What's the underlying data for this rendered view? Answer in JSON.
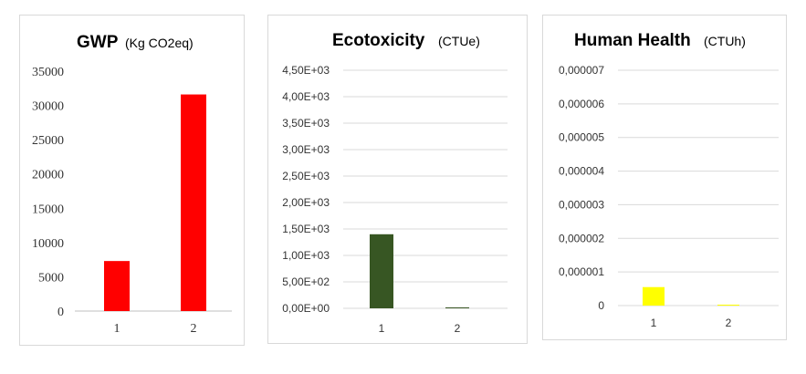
{
  "chart_data": [
    {
      "type": "bar",
      "title": "GWP",
      "unit": "(Kg CO2eq)",
      "categories": [
        "1",
        "2"
      ],
      "values": [
        7300,
        31600
      ],
      "ylim": [
        0,
        35000
      ],
      "yticks": [
        "35000",
        "30000",
        "25000",
        "20000",
        "15000",
        "10000",
        "5000",
        "0"
      ],
      "grid": false,
      "color": "#ff0000"
    },
    {
      "type": "bar",
      "title": "Ecotoxicity",
      "unit": "(CTUe)",
      "categories": [
        "1",
        "2"
      ],
      "values": [
        1400,
        10
      ],
      "ylim": [
        0,
        4500
      ],
      "yticks": [
        "4,50E+03",
        "4,00E+03",
        "3,50E+03",
        "3,00E+03",
        "2,50E+03",
        "2,00E+03",
        "1,50E+03",
        "1,00E+03",
        "5,00E+02",
        "0,00E+00"
      ],
      "grid": true,
      "color": "#375623"
    },
    {
      "type": "bar",
      "title": "Human Health",
      "unit": "(CTUh)",
      "categories": [
        "1",
        "2"
      ],
      "values": [
        5.5e-07,
        2e-08
      ],
      "ylim": [
        0,
        7e-06
      ],
      "yticks": [
        "0,000007",
        "0,000006",
        "0,000005",
        "0,000004",
        "0,000003",
        "0,000002",
        "0,000001",
        "0"
      ],
      "grid": true,
      "color": "#ffff00"
    }
  ]
}
